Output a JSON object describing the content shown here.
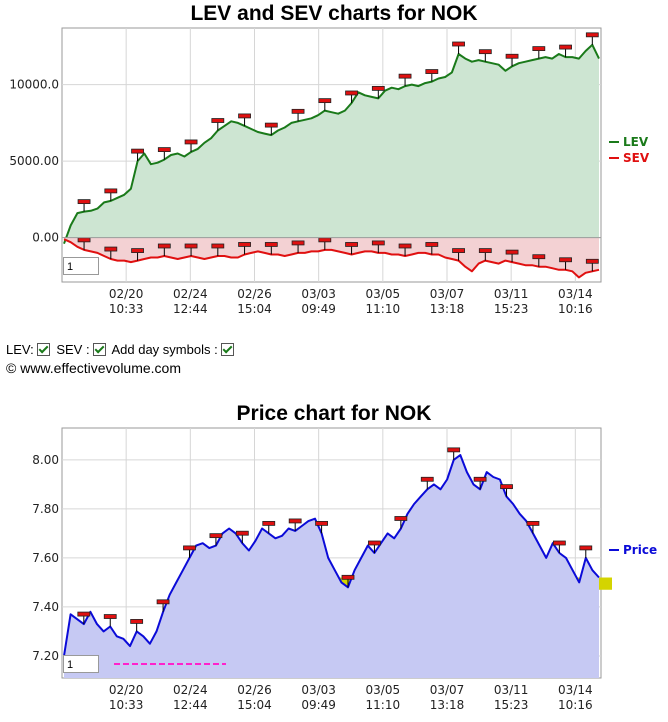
{
  "chart_data": [
    {
      "type": "area",
      "title": "LEV and SEV charts for NOK",
      "y_ticks": [
        "10000.0",
        "5000.00",
        "0.00"
      ],
      "y_tick_values": [
        10000,
        5000,
        0
      ],
      "ylim": [
        -2900,
        13700
      ],
      "x_ticks": [
        {
          "date": "02/20",
          "time": "10:33"
        },
        {
          "date": "02/24",
          "time": "12:44"
        },
        {
          "date": "02/26",
          "time": "15:04"
        },
        {
          "date": "03/03",
          "time": "09:49"
        },
        {
          "date": "03/05",
          "time": "11:10"
        },
        {
          "date": "03/07",
          "time": "13:18"
        },
        {
          "date": "03/11",
          "time": "15:23"
        },
        {
          "date": "03/14",
          "time": "10:16"
        }
      ],
      "legend_position": "right",
      "series": [
        {
          "name": "LEV",
          "color": "#1a7a1a",
          "fill": "#cde5d2",
          "values": [
            -400,
            800,
            1600,
            1700,
            1750,
            1900,
            2300,
            2400,
            2600,
            2800,
            3200,
            5000,
            5500,
            4800,
            4900,
            5100,
            5400,
            5500,
            5300,
            5600,
            5800,
            6200,
            6500,
            7000,
            7300,
            7600,
            7500,
            7300,
            7100,
            6900,
            6800,
            6700,
            7000,
            7200,
            7500,
            7600,
            7700,
            7800,
            8000,
            8300,
            8200,
            8100,
            8300,
            8800,
            9500,
            9300,
            9200,
            9100,
            9600,
            9800,
            9700,
            9900,
            10000,
            9900,
            10100,
            10200,
            10400,
            10500,
            10800,
            12000,
            11700,
            11500,
            11600,
            11500,
            11400,
            11300,
            10900,
            11200,
            11400,
            11500,
            11600,
            11700,
            11800,
            11700,
            12000,
            11800,
            11800,
            11700,
            12200,
            12600,
            11700
          ]
        },
        {
          "name": "SEV",
          "color": "#e01010",
          "fill": "#f3d1d3",
          "values": [
            -100,
            -300,
            -600,
            -800,
            -900,
            -1000,
            -1200,
            -1400,
            -1500,
            -1500,
            -1600,
            -1500,
            -1400,
            -1300,
            -1300,
            -1200,
            -1300,
            -1400,
            -1300,
            -1200,
            -1300,
            -1400,
            -1300,
            -1200,
            -1200,
            -1300,
            -1300,
            -1100,
            -1000,
            -900,
            -1000,
            -1100,
            -1100,
            -1200,
            -1100,
            -1000,
            -1000,
            -900,
            -900,
            -800,
            -800,
            -900,
            -1000,
            -1100,
            -1000,
            -900,
            -900,
            -1000,
            -1000,
            -1100,
            -1100,
            -1200,
            -1100,
            -1000,
            -1000,
            -1100,
            -1100,
            -1300,
            -1400,
            -1500,
            -1900,
            -2200,
            -1700,
            -1500,
            -1600,
            -1700,
            -1500,
            -1600,
            -1700,
            -1800,
            -1800,
            -1900,
            -1900,
            -2000,
            -2100,
            -2100,
            -2200,
            -2600,
            -2300,
            -2200,
            -2100
          ]
        }
      ]
    },
    {
      "type": "area",
      "title": "Price chart for NOK",
      "y_ticks": [
        "8.00",
        "7.80",
        "7.60",
        "7.40",
        "7.20"
      ],
      "y_tick_values": [
        8.0,
        7.8,
        7.6,
        7.4,
        7.2
      ],
      "ylim": [
        7.11,
        8.13
      ],
      "x_ticks": [
        {
          "date": "02/20",
          "time": "10:33"
        },
        {
          "date": "02/24",
          "time": "12:44"
        },
        {
          "date": "02/26",
          "time": "15:04"
        },
        {
          "date": "03/03",
          "time": "09:49"
        },
        {
          "date": "03/05",
          "time": "11:10"
        },
        {
          "date": "03/07",
          "time": "13:18"
        },
        {
          "date": "03/11",
          "time": "15:23"
        },
        {
          "date": "03/14",
          "time": "10:16"
        }
      ],
      "legend_position": "right",
      "support_band": [
        7.47,
        7.52
      ],
      "series": [
        {
          "name": "Price",
          "color": "#0b0bd8",
          "fill": "#c6c9f3",
          "values": [
            7.2,
            7.37,
            7.35,
            7.33,
            7.38,
            7.33,
            7.3,
            7.32,
            7.28,
            7.27,
            7.24,
            7.3,
            7.28,
            7.25,
            7.3,
            7.38,
            7.45,
            7.5,
            7.55,
            7.6,
            7.65,
            7.66,
            7.64,
            7.65,
            7.7,
            7.72,
            7.7,
            7.66,
            7.63,
            7.67,
            7.72,
            7.7,
            7.68,
            7.69,
            7.72,
            7.71,
            7.73,
            7.75,
            7.76,
            7.7,
            7.6,
            7.55,
            7.5,
            7.48,
            7.55,
            7.6,
            7.65,
            7.62,
            7.66,
            7.7,
            7.68,
            7.72,
            7.78,
            7.82,
            7.85,
            7.88,
            7.9,
            7.88,
            7.92,
            8.0,
            8.02,
            7.95,
            7.9,
            7.88,
            7.95,
            7.93,
            7.92,
            7.85,
            7.82,
            7.78,
            7.75,
            7.7,
            7.65,
            7.6,
            7.66,
            7.62,
            7.6,
            7.55,
            7.5,
            7.6,
            7.55,
            7.52
          ]
        }
      ]
    }
  ],
  "controls": {
    "lev_label": "LEV:",
    "sev_label": "SEV :",
    "day_symbols_label": "Add day symbols :",
    "copyright": "© www.effectivevolume.com",
    "zoom_value_1": "1",
    "zoom_value_2": "1"
  }
}
